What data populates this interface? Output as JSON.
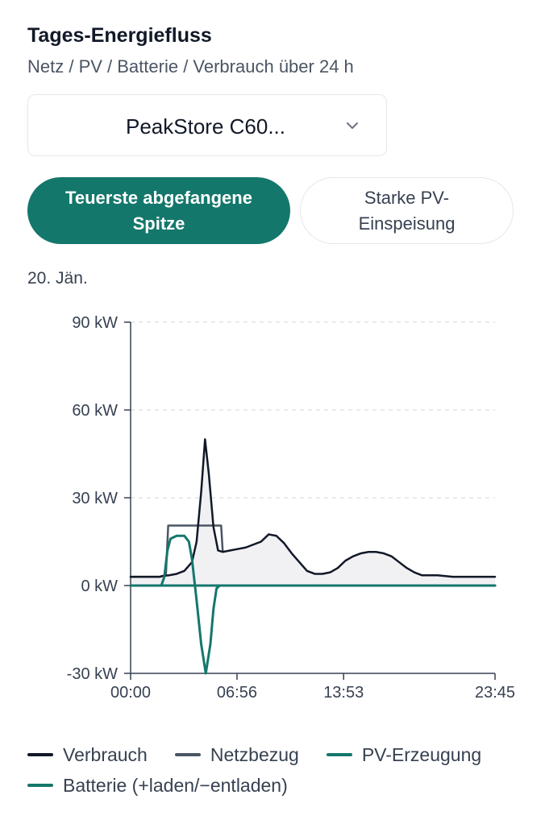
{
  "header": {
    "title": "Tages-Energiefluss",
    "subtitle": "Netz / PV / Batterie / Verbrauch über 24 h"
  },
  "device_select": {
    "value": "PeakStore C60..."
  },
  "scenario_buttons": [
    {
      "label": "Teuerste abgefangene Spitze",
      "active": true
    },
    {
      "label": "Starke PV-Einspeisung",
      "active": false
    }
  ],
  "date_label": "20. Jän.",
  "colors": {
    "verbrauch": "#111827",
    "netzbezug": "#4b5563",
    "pv": "#14776b",
    "batterie": "#14776b",
    "fill": "#f1f1f4",
    "grid": "#d1d5db"
  },
  "chart_data": {
    "type": "line",
    "title": "",
    "xlabel": "",
    "ylabel": "",
    "x_unit": "hours",
    "xlim": [
      0,
      23.75
    ],
    "ylim": [
      -30,
      90
    ],
    "y_ticks": [
      -30,
      0,
      30,
      60,
      90
    ],
    "y_tick_labels": [
      "-30 kW",
      "0 kW",
      "30 kW",
      "60 kW",
      "90 kW"
    ],
    "x_ticks": [
      0,
      6.9333,
      13.8833,
      23.75
    ],
    "x_tick_labels": [
      "00:00",
      "06:56",
      "13:53",
      "23:45"
    ],
    "grid": true,
    "legend_position": "bottom",
    "series": [
      {
        "name": "Verbrauch",
        "x": [
          0,
          1.9,
          2.1,
          2.5,
          3,
          3.5,
          4,
          4.3,
          4.6,
          4.85,
          5.1,
          5.4,
          5.7,
          6,
          6.5,
          7,
          7.5,
          8,
          8.5,
          9,
          9.5,
          10,
          10.5,
          11,
          11.5,
          12,
          12.5,
          13,
          13.5,
          14,
          14.5,
          15,
          15.5,
          16,
          16.5,
          17,
          17.5,
          18,
          18.5,
          19,
          20,
          21,
          22,
          23,
          23.75
        ],
        "values": [
          3,
          3,
          3.3,
          3.5,
          4,
          5,
          8,
          15,
          32,
          50,
          38,
          20,
          12,
          11.5,
          12,
          12.5,
          13,
          14,
          15,
          17.5,
          17,
          14.5,
          11,
          8,
          5,
          4,
          4,
          4.5,
          6,
          8.5,
          10,
          11,
          11.5,
          11.5,
          11,
          10,
          8,
          6,
          4.5,
          3.5,
          3.5,
          3,
          3,
          3,
          3
        ]
      },
      {
        "name": "Netzbezug",
        "x": [
          0,
          1.9,
          2.3,
          2.45,
          3,
          4,
          5,
          5.9,
          6.0
        ],
        "values": [
          3,
          3,
          3.5,
          20.5,
          20.5,
          20.5,
          20.5,
          20.5,
          12
        ]
      },
      {
        "name": "PV-Erzeugung",
        "x": [
          0,
          2,
          2.2,
          2.4,
          2.6,
          3,
          3.5,
          3.8,
          4.0,
          4.3,
          4.6,
          4.9,
          5.2,
          5.4,
          5.6,
          5.8,
          6,
          23.75
        ],
        "values": [
          0,
          0,
          3,
          12,
          16,
          17,
          17,
          15,
          9,
          -5,
          -20,
          -30,
          -20,
          -8,
          -1,
          0,
          0,
          0
        ]
      },
      {
        "name": "Batterie (+laden/−entladen)",
        "x": [
          0,
          23.75
        ],
        "values": [
          0,
          0
        ]
      }
    ]
  }
}
